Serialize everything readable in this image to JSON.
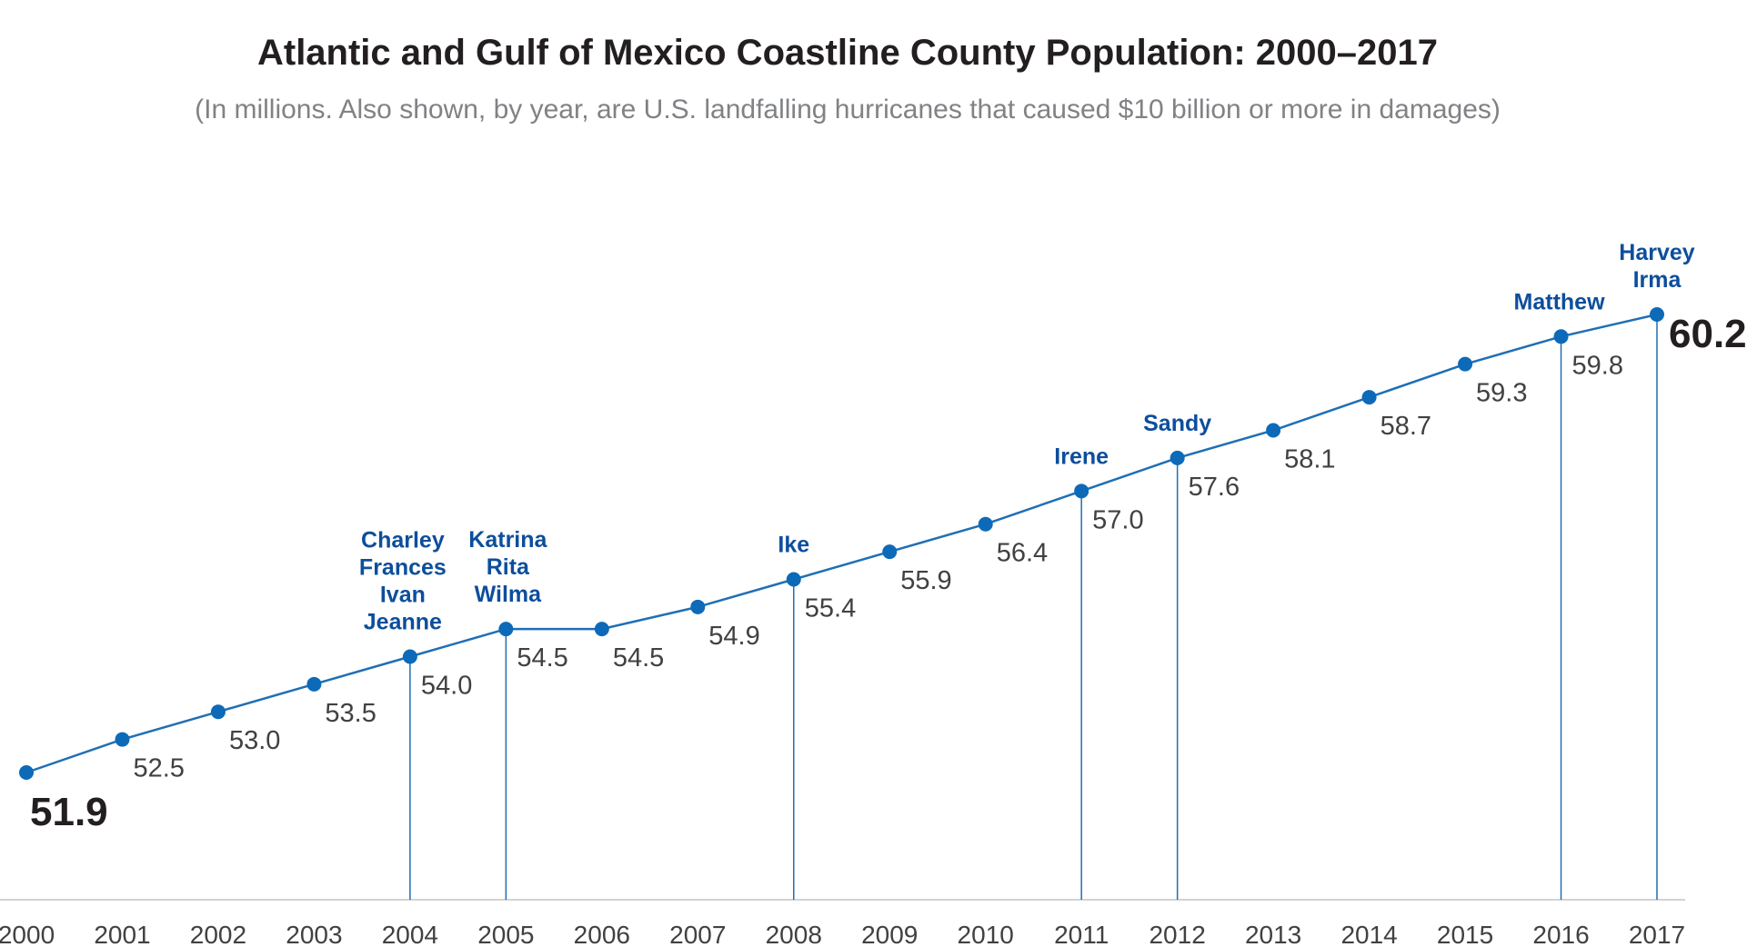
{
  "chart_data": {
    "type": "line",
    "title": "Atlantic and Gulf of Mexico Coastline County Population: 2000–2017",
    "subtitle": "(In millions. Also shown, by year, are U.S. landfalling hurricanes that caused $10 billion or more in damages)",
    "x": [
      "2000",
      "2001",
      "2002",
      "2003",
      "2004",
      "2005",
      "2006",
      "2007",
      "2008",
      "2009",
      "2010",
      "2011",
      "2012",
      "2013",
      "2014",
      "2015",
      "2016",
      "2017"
    ],
    "values": [
      51.9,
      52.5,
      53.0,
      53.5,
      54.0,
      54.5,
      54.5,
      54.9,
      55.4,
      55.9,
      56.4,
      57.0,
      57.6,
      58.1,
      58.7,
      59.3,
      59.8,
      60.2
    ],
    "value_labels": [
      "51.9",
      "52.5",
      "53.0",
      "53.5",
      "54.0",
      "54.5",
      "54.5",
      "54.9",
      "55.4",
      "55.9",
      "56.4",
      "57.0",
      "57.6",
      "58.1",
      "58.7",
      "59.3",
      "59.8",
      "60.2"
    ],
    "hurricanes": [
      {
        "year": "2004",
        "names": [
          "Charley",
          "Frances",
          "Ivan",
          "Jeanne"
        ]
      },
      {
        "year": "2005",
        "names": [
          "Katrina",
          "Rita",
          "Wilma"
        ]
      },
      {
        "year": "2008",
        "names": [
          "Ike"
        ]
      },
      {
        "year": "2011",
        "names": [
          "Irene"
        ]
      },
      {
        "year": "2012",
        "names": [
          "Sandy"
        ]
      },
      {
        "year": "2016",
        "names": [
          "Matthew"
        ]
      },
      {
        "year": "2017",
        "names": [
          "Harvey",
          "Irma"
        ]
      }
    ],
    "colors": {
      "line": "#1f6fb5",
      "marker": "#0d6ab8",
      "hurricane_text": "#0d4e9c",
      "axis": "#d1d3d4"
    },
    "grid": false,
    "legend": "none"
  }
}
